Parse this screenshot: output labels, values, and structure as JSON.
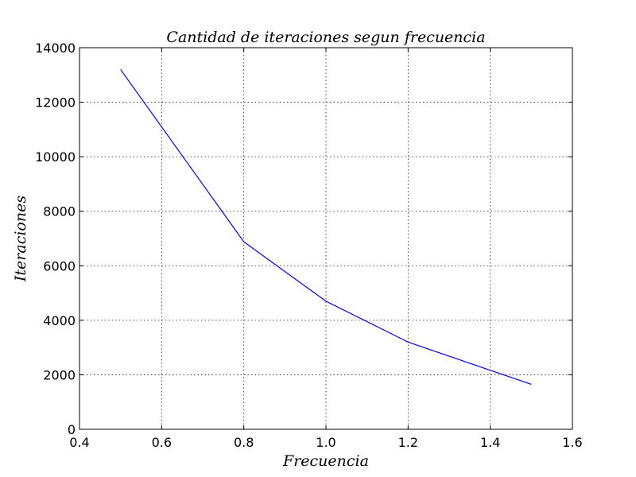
{
  "chart_data": {
    "type": "line",
    "title": "Cantidad de iteraciones segun frecuencia",
    "xlabel": "Frecuencia",
    "ylabel": "Iteraciones",
    "xlim": [
      0.4,
      1.6
    ],
    "ylim": [
      0,
      14000
    ],
    "x_ticks": [
      0.4,
      0.6,
      0.8,
      1.0,
      1.2,
      1.4,
      1.6
    ],
    "x_tick_labels": [
      "0.4",
      "0.6",
      "0.8",
      "1.0",
      "1.2",
      "1.4",
      "1.6"
    ],
    "y_ticks": [
      0,
      2000,
      4000,
      6000,
      8000,
      10000,
      12000,
      14000
    ],
    "y_tick_labels": [
      "0",
      "2000",
      "4000",
      "6000",
      "8000",
      "10000",
      "12000",
      "14000"
    ],
    "grid": true,
    "series": [
      {
        "color": "#0000ff",
        "x": [
          0.5,
          0.8,
          1.0,
          1.2,
          1.5
        ],
        "y": [
          13200,
          6880,
          4700,
          3200,
          1650
        ]
      }
    ]
  }
}
